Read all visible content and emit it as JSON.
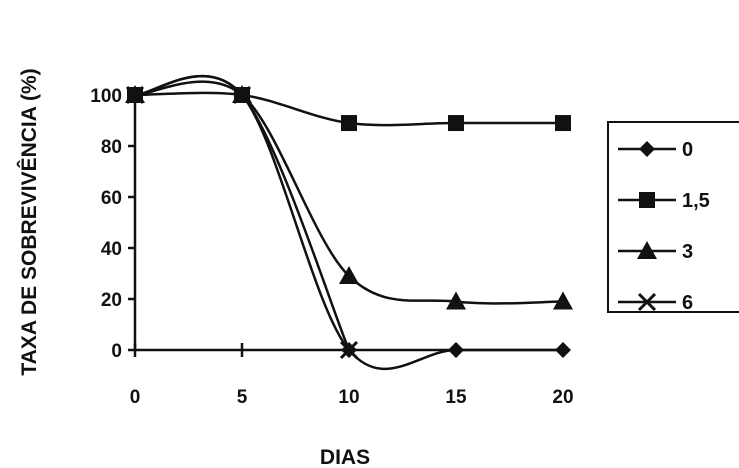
{
  "chart_data": {
    "type": "line",
    "title": "",
    "xlabel": "DIAS",
    "ylabel": "TAXA DE SOBREVIVÊNCIA (%)",
    "x": [
      0,
      5,
      10,
      15,
      20
    ],
    "xticks": [
      "0",
      "5",
      "10",
      "15",
      "20"
    ],
    "yticks": [
      "0",
      "20",
      "40",
      "60",
      "80",
      "100"
    ],
    "xlim": [
      0,
      20
    ],
    "ylim": [
      0,
      100
    ],
    "grid": false,
    "legend_position": "right",
    "series": [
      {
        "name": "0",
        "marker": "diamond",
        "values": [
          100,
          100,
          0,
          0,
          0
        ]
      },
      {
        "name": "1,5",
        "marker": "square",
        "values": [
          100,
          100,
          89,
          89,
          89
        ]
      },
      {
        "name": "3",
        "marker": "triangle",
        "values": [
          100,
          100,
          29,
          19,
          19
        ]
      },
      {
        "name": "6",
        "marker": "x",
        "values": [
          100,
          100,
          0,
          null,
          null
        ]
      }
    ]
  }
}
